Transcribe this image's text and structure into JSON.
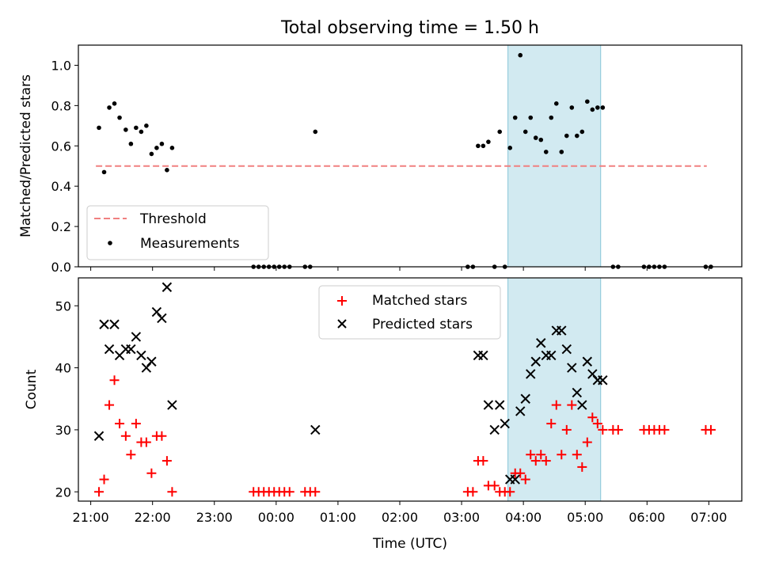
{
  "chart_data": [
    {
      "type": "scatter",
      "title": "Total observing time = 1.50 h",
      "ylabel": "Matched/Predicted stars",
      "xlabel": "",
      "xlim": [
        "20:48",
        "07:32"
      ],
      "ylim": [
        0,
        1.1
      ],
      "yticks": [
        "0.0",
        "0.2",
        "0.4",
        "0.6",
        "0.8",
        "1.0"
      ],
      "highlight_span": [
        "03:45",
        "05:15"
      ],
      "highlight_color": "#add8e6",
      "legend_position": "lower-left",
      "series": [
        {
          "name": "Threshold",
          "style": "dashed-line",
          "color": "#f08080",
          "x": [
            "21:05",
            "06:58"
          ],
          "y": [
            0.5,
            0.5
          ]
        },
        {
          "name": "Measurements",
          "style": "dot",
          "color": "#000000",
          "x": [
            "21:08",
            "21:13",
            "21:18",
            "21:23",
            "21:28",
            "21:34",
            "21:39",
            "21:44",
            "21:49",
            "21:54",
            "21:59",
            "22:04",
            "22:09",
            "22:14",
            "22:19",
            "23:38",
            "23:43",
            "23:48",
            "23:53",
            "23:58",
            "00:03",
            "00:08",
            "00:13",
            "00:28",
            "00:33",
            "00:38",
            "03:06",
            "03:11",
            "03:16",
            "03:21",
            "03:26",
            "03:32",
            "03:37",
            "03:42",
            "03:47",
            "03:52",
            "03:57",
            "04:02",
            "04:07",
            "04:12",
            "04:17",
            "04:22",
            "04:27",
            "04:32",
            "04:37",
            "04:42",
            "04:47",
            "04:52",
            "04:57",
            "05:02",
            "05:07",
            "05:12",
            "05:17",
            "05:27",
            "05:32",
            "05:57",
            "06:02",
            "06:07",
            "06:12",
            "06:17",
            "06:57",
            "07:02"
          ],
          "y": [
            0.69,
            0.47,
            0.79,
            0.81,
            0.74,
            0.68,
            0.61,
            0.69,
            0.67,
            0.7,
            0.56,
            0.59,
            0.61,
            0.48,
            0.59,
            0,
            0,
            0,
            0,
            0,
            0,
            0,
            0,
            0,
            0,
            0.67,
            0,
            0,
            0.6,
            0.6,
            0.62,
            0,
            0.67,
            0,
            0.59,
            0.74,
            1.05,
            0.67,
            0.74,
            0.64,
            0.63,
            0.57,
            0.74,
            0.81,
            0.57,
            0.65,
            0.79,
            0.65,
            0.67,
            0.82,
            0.78,
            0.79,
            0.79,
            0,
            0,
            0,
            0,
            0,
            0,
            0,
            0,
            0
          ]
        }
      ]
    },
    {
      "type": "scatter",
      "title": "",
      "ylabel": "Count",
      "xlabel": "Time (UTC)",
      "xlim": [
        "20:48",
        "07:32"
      ],
      "ylim": [
        18.5,
        54.5
      ],
      "yticks": [
        "20",
        "30",
        "40",
        "50"
      ],
      "xticks": [
        "21:00",
        "22:00",
        "23:00",
        "00:00",
        "01:00",
        "02:00",
        "03:00",
        "04:00",
        "05:00",
        "06:00",
        "07:00"
      ],
      "highlight_span": [
        "03:45",
        "05:15"
      ],
      "highlight_color": "#add8e6",
      "legend_position": "upper-center",
      "series": [
        {
          "name": "Matched stars",
          "marker": "plus",
          "color": "#ff0000",
          "x": [
            "21:08",
            "21:13",
            "21:18",
            "21:23",
            "21:28",
            "21:34",
            "21:39",
            "21:44",
            "21:49",
            "21:54",
            "21:59",
            "22:04",
            "22:09",
            "22:14",
            "22:19",
            "23:38",
            "23:43",
            "23:48",
            "23:53",
            "23:58",
            "00:03",
            "00:08",
            "00:13",
            "00:28",
            "00:33",
            "00:38",
            "03:06",
            "03:11",
            "03:16",
            "03:21",
            "03:26",
            "03:32",
            "03:37",
            "03:42",
            "03:47",
            "03:52",
            "03:57",
            "04:02",
            "04:07",
            "04:12",
            "04:17",
            "04:22",
            "04:27",
            "04:32",
            "04:37",
            "04:42",
            "04:47",
            "04:52",
            "04:57",
            "05:02",
            "05:07",
            "05:12",
            "05:17",
            "05:27",
            "05:32",
            "05:57",
            "06:02",
            "06:07",
            "06:12",
            "06:17",
            "06:57",
            "07:02"
          ],
          "y": [
            20,
            22,
            34,
            38,
            31,
            29,
            26,
            31,
            28,
            28,
            23,
            29,
            29,
            25,
            20,
            20,
            20,
            20,
            20,
            20,
            20,
            20,
            20,
            20,
            20,
            20,
            20,
            20,
            25,
            25,
            21,
            21,
            20,
            20,
            20,
            23,
            23,
            22,
            26,
            25,
            26,
            25,
            31,
            34,
            26,
            30,
            34,
            26,
            24,
            28,
            32,
            31,
            30,
            30,
            30,
            30,
            30,
            30,
            30,
            30,
            30,
            30
          ]
        },
        {
          "name": "Predicted stars",
          "marker": "x",
          "color": "#000000",
          "x": [
            "21:08",
            "21:13",
            "21:18",
            "21:23",
            "21:28",
            "21:34",
            "21:39",
            "21:44",
            "21:49",
            "21:54",
            "21:59",
            "22:04",
            "22:09",
            "22:14",
            "22:19",
            "00:38",
            "03:16",
            "03:21",
            "03:26",
            "03:32",
            "03:37",
            "03:42",
            "03:47",
            "03:52",
            "03:57",
            "04:02",
            "04:07",
            "04:12",
            "04:17",
            "04:22",
            "04:27",
            "04:32",
            "04:37",
            "04:42",
            "04:47",
            "04:52",
            "04:57",
            "05:02",
            "05:07",
            "05:12",
            "05:17"
          ],
          "y": [
            29,
            47,
            43,
            47,
            42,
            43,
            43,
            45,
            42,
            40,
            41,
            49,
            48,
            53,
            34,
            30,
            42,
            42,
            34,
            30,
            34,
            31,
            22,
            22,
            33,
            35,
            39,
            41,
            44,
            42,
            42,
            46,
            46,
            43,
            40,
            36,
            34,
            41,
            39,
            38,
            38
          ]
        }
      ]
    }
  ]
}
